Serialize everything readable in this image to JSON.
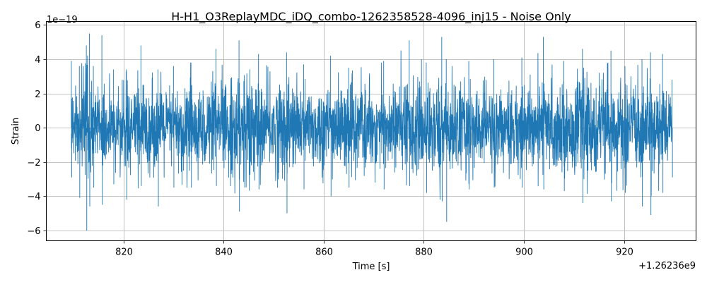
{
  "chart_data": {
    "type": "line",
    "title": "H-H1_O3ReplayMDC_iDQ_combo-1262358528-4096_inj15 - Noise Only",
    "xlabel": "Time [s]",
    "ylabel": "Strain",
    "y_scale_label": "1e−19",
    "x_offset_label": "+1.26236e9",
    "xlim": [
      804.6,
      934.4
    ],
    "ylim": [
      -6.6,
      6.2
    ],
    "x_ticks": [
      820,
      840,
      860,
      880,
      900,
      920
    ],
    "x_tick_labels": [
      "820",
      "840",
      "860",
      "880",
      "900",
      "920"
    ],
    "y_ticks": [
      -6,
      -4,
      -2,
      0,
      2,
      4,
      6
    ],
    "y_tick_labels": [
      "−6",
      "−4",
      "−2",
      "0",
      "2",
      "4",
      "6"
    ],
    "grid": true,
    "series": [
      {
        "color": "#1f77b4",
        "x_start": 809.6,
        "x_end": 929.6,
        "amplitude_envelope": [
          {
            "x": 809.6,
            "max": 3.9,
            "min": -2.9
          },
          {
            "x": 811.2,
            "max": 3.6,
            "min": -4.1
          },
          {
            "x": 812.6,
            "max": 4.8,
            "min": -6.0
          },
          {
            "x": 813.2,
            "max": 5.5,
            "min": -4.6
          },
          {
            "x": 814.0,
            "max": 3.6,
            "min": -3.5
          },
          {
            "x": 815.7,
            "max": 5.4,
            "min": -4.5
          },
          {
            "x": 818.0,
            "max": 3.4,
            "min": -3.3
          },
          {
            "x": 820.6,
            "max": 3.4,
            "min": -4.2
          },
          {
            "x": 823.5,
            "max": 4.8,
            "min": -3.4
          },
          {
            "x": 826.9,
            "max": 3.4,
            "min": -4.6
          },
          {
            "x": 830.0,
            "max": 3.6,
            "min": -3.5
          },
          {
            "x": 833.5,
            "max": 3.8,
            "min": -3.5
          },
          {
            "x": 838.5,
            "max": 4.6,
            "min": -3.4
          },
          {
            "x": 843.1,
            "max": 5.1,
            "min": -4.9
          },
          {
            "x": 847.0,
            "max": 4.3,
            "min": -3.6
          },
          {
            "x": 852.6,
            "max": 4.4,
            "min": -5.0
          },
          {
            "x": 856.0,
            "max": 3.7,
            "min": -3.6
          },
          {
            "x": 861.4,
            "max": 4.2,
            "min": -4.0
          },
          {
            "x": 865.0,
            "max": 3.5,
            "min": -3.5
          },
          {
            "x": 872.0,
            "max": 3.9,
            "min": -3.6
          },
          {
            "x": 877.1,
            "max": 5.1,
            "min": -3.4
          },
          {
            "x": 880.5,
            "max": 3.8,
            "min": -3.8
          },
          {
            "x": 883.6,
            "max": 5.3,
            "min": -4.3
          },
          {
            "x": 884.5,
            "max": 4.0,
            "min": -5.5
          },
          {
            "x": 889.0,
            "max": 3.9,
            "min": -3.6
          },
          {
            "x": 894.0,
            "max": 4.0,
            "min": -3.5
          },
          {
            "x": 899.6,
            "max": 4.1,
            "min": -3.5
          },
          {
            "x": 903.9,
            "max": 5.3,
            "min": -3.6
          },
          {
            "x": 908.0,
            "max": 3.9,
            "min": -3.7
          },
          {
            "x": 911.7,
            "max": 4.6,
            "min": -4.4
          },
          {
            "x": 917.4,
            "max": 4.5,
            "min": -4.3
          },
          {
            "x": 920.2,
            "max": 3.6,
            "min": -3.8
          },
          {
            "x": 923.6,
            "max": 4.0,
            "min": -4.6
          },
          {
            "x": 925.3,
            "max": 4.4,
            "min": -5.1
          },
          {
            "x": 927.7,
            "max": 4.3,
            "min": -3.8
          },
          {
            "x": 929.6,
            "max": 2.8,
            "min": -2.9
          }
        ]
      }
    ]
  }
}
